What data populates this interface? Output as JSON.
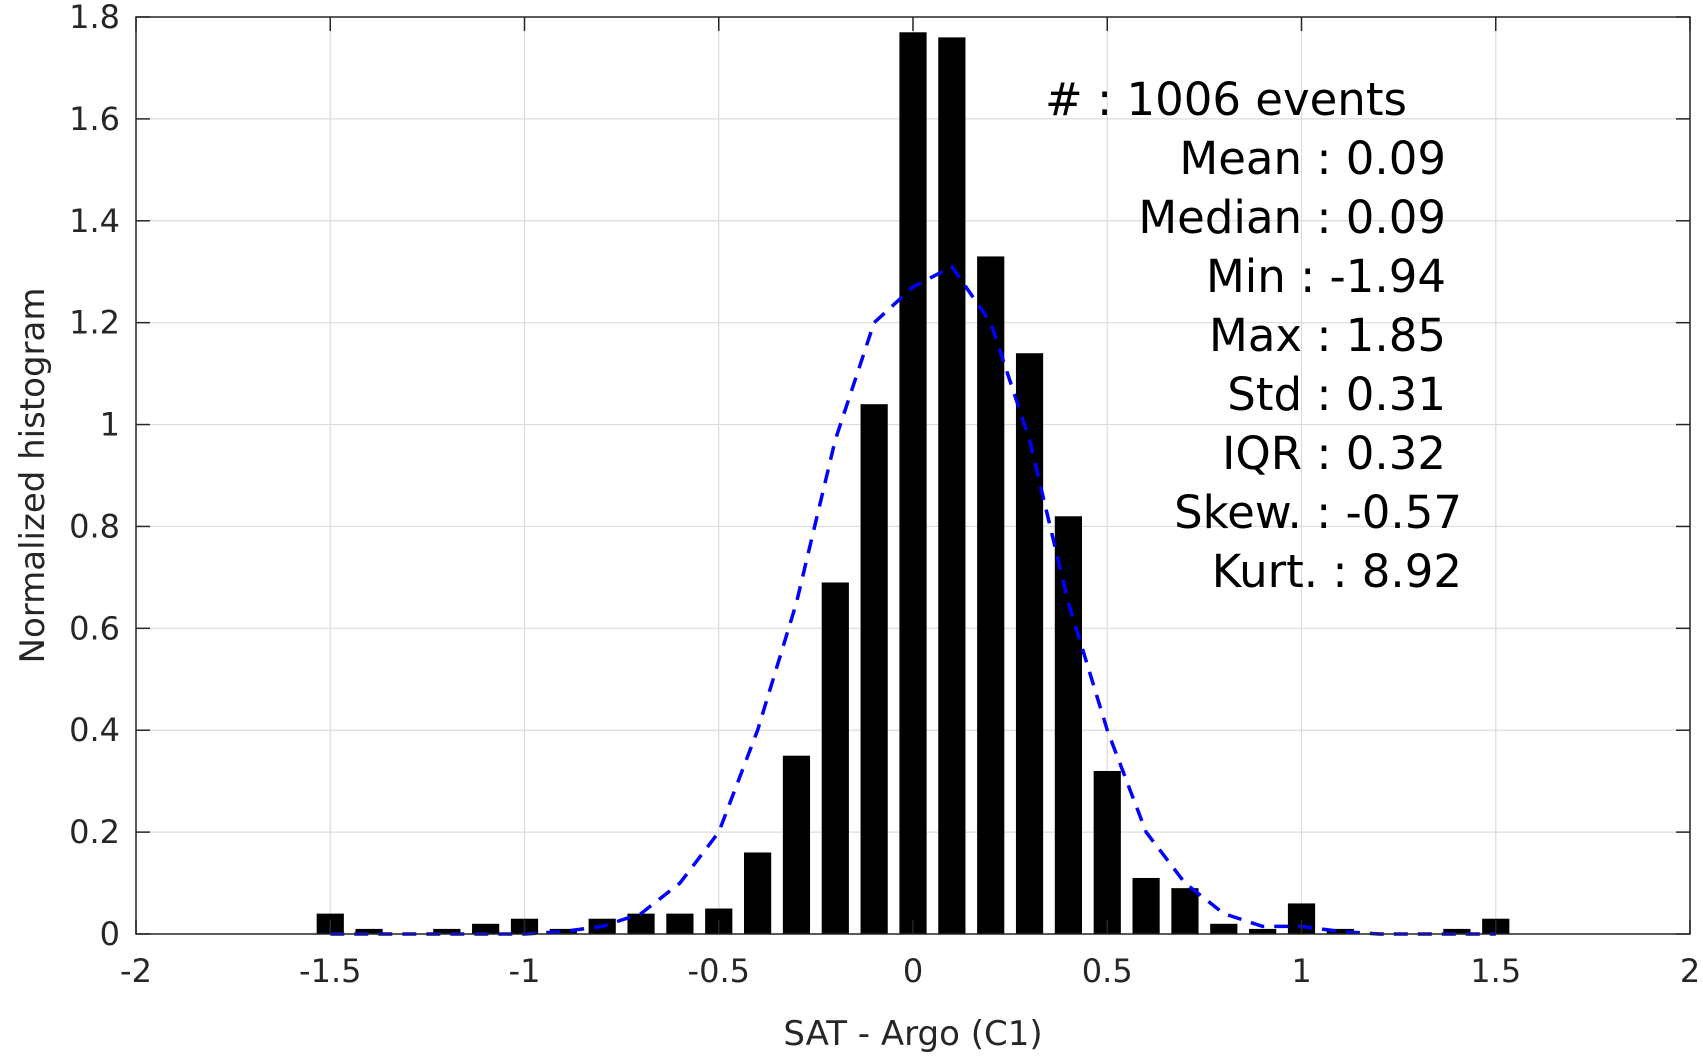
{
  "chart_data": {
    "type": "bar",
    "title": "",
    "xlabel": "SAT - Argo (C1)",
    "ylabel": "Normalized histogram",
    "xlim": [
      -2,
      2
    ],
    "ylim": [
      0,
      1.8
    ],
    "grid": true,
    "xticks": [
      "-2",
      "-1.5",
      "-1",
      "-0.5",
      "0",
      "0.5",
      "1",
      "1.5",
      "2"
    ],
    "yticks": [
      "0",
      "0.2",
      "0.4",
      "0.6",
      "0.8",
      "1",
      "1.2",
      "1.4",
      "1.6",
      "1.8"
    ],
    "bar_color": "#000000",
    "fit_color": "#0000ff",
    "bins": [
      {
        "x": -1.5,
        "value": 0.04
      },
      {
        "x": -1.4,
        "value": 0.01
      },
      {
        "x": -1.2,
        "value": 0.01
      },
      {
        "x": -1.1,
        "value": 0.02
      },
      {
        "x": -1.0,
        "value": 0.03
      },
      {
        "x": -0.9,
        "value": 0.01
      },
      {
        "x": -0.8,
        "value": 0.03
      },
      {
        "x": -0.7,
        "value": 0.04
      },
      {
        "x": -0.6,
        "value": 0.04
      },
      {
        "x": -0.5,
        "value": 0.05
      },
      {
        "x": -0.4,
        "value": 0.16
      },
      {
        "x": -0.3,
        "value": 0.35
      },
      {
        "x": -0.2,
        "value": 0.69
      },
      {
        "x": -0.1,
        "value": 1.04
      },
      {
        "x": 0.0,
        "value": 1.77
      },
      {
        "x": 0.1,
        "value": 1.76
      },
      {
        "x": 0.2,
        "value": 1.33
      },
      {
        "x": 0.3,
        "value": 1.14
      },
      {
        "x": 0.4,
        "value": 0.82
      },
      {
        "x": 0.5,
        "value": 0.32
      },
      {
        "x": 0.6,
        "value": 0.11
      },
      {
        "x": 0.7,
        "value": 0.09
      },
      {
        "x": 0.8,
        "value": 0.02
      },
      {
        "x": 0.9,
        "value": 0.01
      },
      {
        "x": 1.0,
        "value": 0.06
      },
      {
        "x": 1.1,
        "value": 0.01
      },
      {
        "x": 1.4,
        "value": 0.01
      },
      {
        "x": 1.5,
        "value": 0.03
      }
    ],
    "bin_width": 0.07,
    "fit_curve": {
      "style": "dashed",
      "x": [
        -1.5,
        -1.4,
        -1.3,
        -1.2,
        -1.1,
        -1.0,
        -0.9,
        -0.8,
        -0.7,
        -0.6,
        -0.5,
        -0.4,
        -0.3,
        -0.2,
        -0.1,
        0.0,
        0.1,
        0.2,
        0.3,
        0.4,
        0.5,
        0.6,
        0.7,
        0.8,
        0.9,
        1.0,
        1.1,
        1.2,
        1.3,
        1.4,
        1.5
      ],
      "y": [
        0.0,
        0.0,
        0.0,
        0.0,
        0.0,
        0.0,
        0.005,
        0.015,
        0.04,
        0.1,
        0.2,
        0.4,
        0.65,
        0.97,
        1.2,
        1.27,
        1.31,
        1.2,
        0.97,
        0.65,
        0.4,
        0.2,
        0.1,
        0.04,
        0.015,
        0.015,
        0.005,
        0.0,
        0.0,
        0.0,
        0.0
      ]
    },
    "stats": [
      {
        "label": "#  : 1006 events",
        "align": "left"
      },
      {
        "label": "Mean : 0.09",
        "align": "right"
      },
      {
        "label": "Median : 0.09",
        "align": "right"
      },
      {
        "label": "Min : -1.94",
        "align": "right"
      },
      {
        "label": "Max : 1.85",
        "align": "right"
      },
      {
        "label": "Std : 0.31",
        "align": "right"
      },
      {
        "label": "IQR : 0.32",
        "align": "right"
      },
      {
        "label": "Skew. : -0.57",
        "align": "right-wide"
      },
      {
        "label": "Kurt. : 8.92",
        "align": "right-wide"
      }
    ]
  }
}
